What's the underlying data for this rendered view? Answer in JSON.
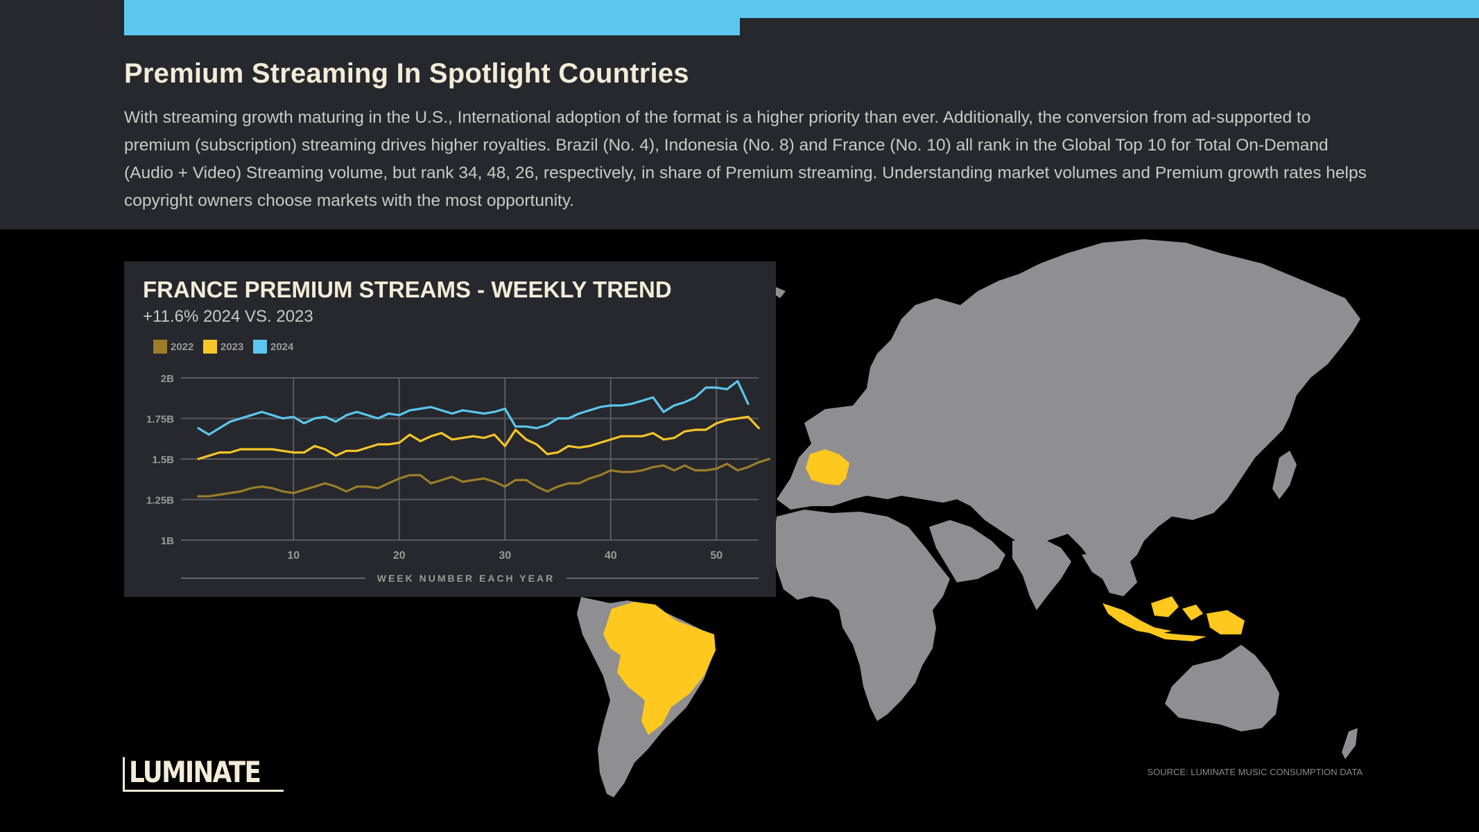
{
  "page": {
    "title": "Premium Streaming In Spotlight Countries",
    "body": "With streaming growth maturing in the U.S., International adoption of the format is a higher priority than ever. Additionally, the conversion from ad-supported to premium (subscription) streaming drives higher royalties. Brazil (No. 4), Indonesia (No. 8) and France (No. 10) all rank in the Global Top 10 for Total On-Demand (Audio + Video) Streaming volume, but rank 34, 48, 26, respectively, in share of Premium streaming. Understanding market volumes and Premium growth rates helps copyright owners choose markets with the most opportunity.",
    "source": "SOURCE: LUMINATE MUSIC CONSUMPTION DATA",
    "logo": "LUMINATE"
  },
  "colors": {
    "accent": "#5bc7ef",
    "header_bg": "#26282d",
    "highlight": "#ffc81e",
    "land": "#8f8f91",
    "c2022": "#9c7e2a",
    "c2023": "#f8c628",
    "c2024": "#5bc7ef"
  },
  "map": {
    "highlighted_countries": [
      "France",
      "Brazil",
      "Indonesia"
    ]
  },
  "chart_data": {
    "type": "line",
    "title": "FRANCE PREMIUM STREAMS - WEEKLY TREND",
    "subtitle": "+11.6% 2024 VS. 2023",
    "xlabel": "WEEK NUMBER EACH YEAR",
    "ylabel": "",
    "xlim": [
      1,
      53
    ],
    "ylim": [
      1.0,
      2.0
    ],
    "yticks": [
      1.0,
      1.25,
      1.5,
      1.75,
      2.0
    ],
    "ytick_labels": [
      "1B",
      "1.25B",
      "1.5B",
      "1.75B",
      "2B"
    ],
    "xticks": [
      10,
      20,
      30,
      40,
      50
    ],
    "xtick_labels": [
      "10",
      "20",
      "30",
      "40",
      "50"
    ],
    "legend": "top-left",
    "grid": true,
    "series": [
      {
        "name": "2022",
        "color": "#9c7e2a",
        "x_start": 1,
        "values": [
          1.27,
          1.27,
          1.28,
          1.29,
          1.3,
          1.32,
          1.33,
          1.32,
          1.3,
          1.29,
          1.31,
          1.33,
          1.35,
          1.33,
          1.3,
          1.33,
          1.33,
          1.32,
          1.35,
          1.38,
          1.4,
          1.4,
          1.35,
          1.37,
          1.39,
          1.36,
          1.37,
          1.38,
          1.36,
          1.33,
          1.37,
          1.37,
          1.33,
          1.3,
          1.33,
          1.35,
          1.35,
          1.38,
          1.4,
          1.43,
          1.42,
          1.42,
          1.43,
          1.45,
          1.46,
          1.43,
          1.46,
          1.43,
          1.43,
          1.44,
          1.47,
          1.43,
          1.45,
          1.48,
          1.5
        ]
      },
      {
        "name": "2023",
        "color": "#f8c628",
        "x_start": 1,
        "values": [
          1.5,
          1.52,
          1.54,
          1.54,
          1.56,
          1.56,
          1.56,
          1.56,
          1.55,
          1.54,
          1.54,
          1.58,
          1.56,
          1.52,
          1.55,
          1.55,
          1.57,
          1.59,
          1.59,
          1.6,
          1.65,
          1.61,
          1.64,
          1.66,
          1.62,
          1.63,
          1.64,
          1.63,
          1.65,
          1.58,
          1.68,
          1.62,
          1.59,
          1.53,
          1.54,
          1.58,
          1.57,
          1.58,
          1.6,
          1.62,
          1.64,
          1.64,
          1.64,
          1.66,
          1.62,
          1.63,
          1.67,
          1.68,
          1.68,
          1.72,
          1.74,
          1.75,
          1.76,
          1.69
        ]
      },
      {
        "name": "2024",
        "color": "#5bc7ef",
        "x_start": 1,
        "values": [
          1.69,
          1.65,
          1.69,
          1.73,
          1.75,
          1.77,
          1.79,
          1.77,
          1.75,
          1.76,
          1.72,
          1.75,
          1.76,
          1.73,
          1.77,
          1.79,
          1.77,
          1.75,
          1.78,
          1.77,
          1.8,
          1.81,
          1.82,
          1.8,
          1.78,
          1.8,
          1.79,
          1.78,
          1.79,
          1.81,
          1.7,
          1.7,
          1.69,
          1.71,
          1.75,
          1.75,
          1.78,
          1.8,
          1.82,
          1.83,
          1.83,
          1.84,
          1.86,
          1.88,
          1.79,
          1.83,
          1.85,
          1.88,
          1.94,
          1.94,
          1.93,
          1.98,
          1.84
        ]
      }
    ]
  }
}
